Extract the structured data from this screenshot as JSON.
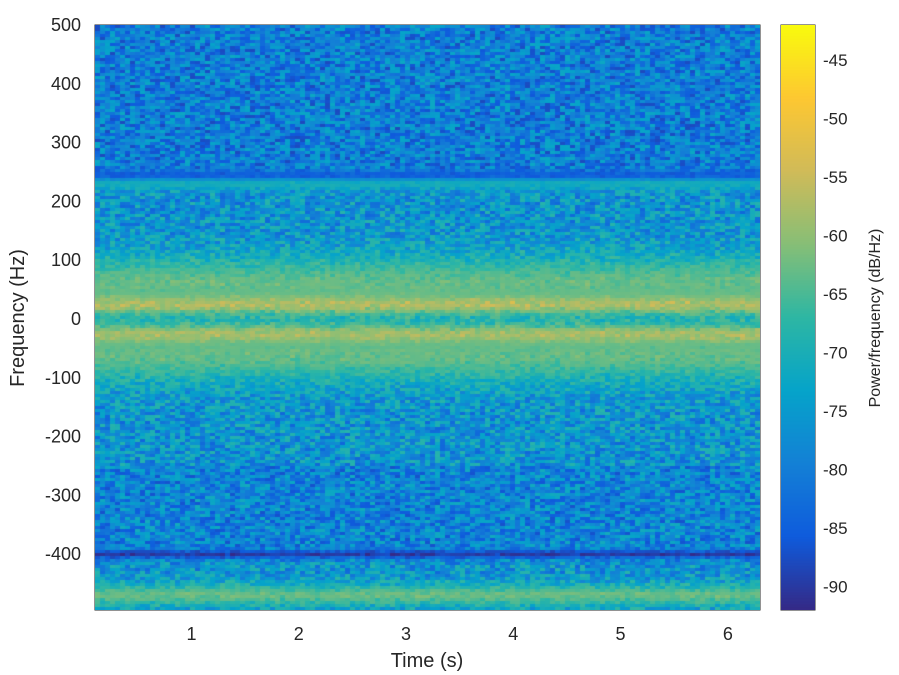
{
  "chart_data": {
    "type": "heatmap",
    "title": "",
    "xlabel": "Time (s)",
    "ylabel": "Frequency (Hz)",
    "colorbar_label": "Power/frequency (dB/Hz)",
    "xlim": [
      0.1,
      6.3
    ],
    "ylim": [
      -495,
      500
    ],
    "x_ticks": [
      1,
      2,
      3,
      4,
      5,
      6
    ],
    "y_ticks": [
      500,
      400,
      300,
      200,
      100,
      0,
      -100,
      -200,
      -300,
      -400
    ],
    "x_tick_labels": [
      "1",
      "2",
      "3",
      "4",
      "5",
      "6"
    ],
    "y_tick_labels": [
      "500",
      "400",
      "300",
      "200",
      "100",
      "0",
      "-100",
      "-200",
      "-300",
      "-400"
    ],
    "clim": [
      -92,
      -42
    ],
    "colorbar_ticks": [
      -45,
      -50,
      -55,
      -60,
      -65,
      -70,
      -75,
      -80,
      -85,
      -90
    ],
    "colorbar_tick_labels": [
      "-45",
      "-50",
      "-55",
      "-60",
      "-65",
      "-70",
      "-75",
      "-80",
      "-85",
      "-90"
    ],
    "colormap": "parula",
    "colormap_stops": [
      "#352a87",
      "#0f5cdd",
      "#1481d6",
      "#06a4ca",
      "#2eb7a4",
      "#87bf77",
      "#d1bb59",
      "#fec832",
      "#f9fb0e"
    ],
    "background_level_db": -76,
    "bands": [
      {
        "center_hz": 28,
        "width_hz": 18,
        "peak_db": -47
      },
      {
        "center_hz": -30,
        "width_hz": 18,
        "peak_db": -48
      },
      {
        "center_hz": 60,
        "width_hz": 50,
        "peak_db": -63
      },
      {
        "center_hz": -60,
        "width_hz": 50,
        "peak_db": -63
      },
      {
        "center_hz": 232,
        "width_hz": 12,
        "peak_db": -70
      },
      {
        "center_hz": -470,
        "width_hz": 20,
        "peak_db": -63
      },
      {
        "center_hz": -400,
        "width_hz": 8,
        "peak_db": -90
      },
      {
        "center_hz": 245,
        "width_hz": 8,
        "peak_db": -86
      }
    ],
    "grid": false
  }
}
